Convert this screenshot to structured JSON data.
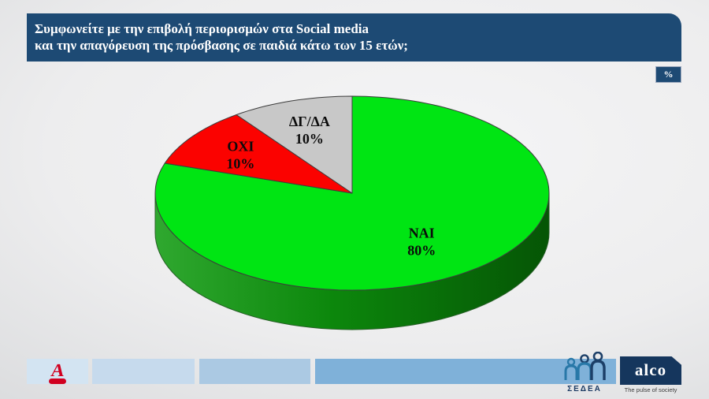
{
  "header": {
    "line1": "Συμφωνείτε με την επιβολή περιορισμών στα Social media",
    "line2": "και την απαγόρευση της πρόσβασης σε παιδιά κάτω των 15 ετών;",
    "unit_badge": "%",
    "bg_color": "#1d4a74"
  },
  "chart_data": {
    "type": "pie",
    "style": "3d",
    "title": "Συμφωνείτε με την επιβολή περιορισμών στα Social media και την απαγόρευση της πρόσβασης σε παιδιά κάτω των 15 ετών;",
    "unit": "%",
    "start": "top",
    "direction": "clockwise",
    "legend": false,
    "label_color": "#0b0b0b",
    "slices": [
      {
        "label": "ΝΑΙ",
        "value": 80,
        "color": "#00e513"
      },
      {
        "label": "ΟΧΙ",
        "value": 10,
        "color": "#fb0200"
      },
      {
        "label": "ΔΓ/ΔΑ",
        "value": 10,
        "color": "#c8c8c8"
      }
    ]
  },
  "footer": {
    "alpha_letter": "A",
    "sedea_label": "ΣΕΔΕΑ",
    "alco_label": "alco",
    "alco_tagline": "The pulse of society",
    "block_colors": [
      "#d3e4f2",
      "#c6daed",
      "#abc9e3",
      "#7fb1d9"
    ]
  }
}
